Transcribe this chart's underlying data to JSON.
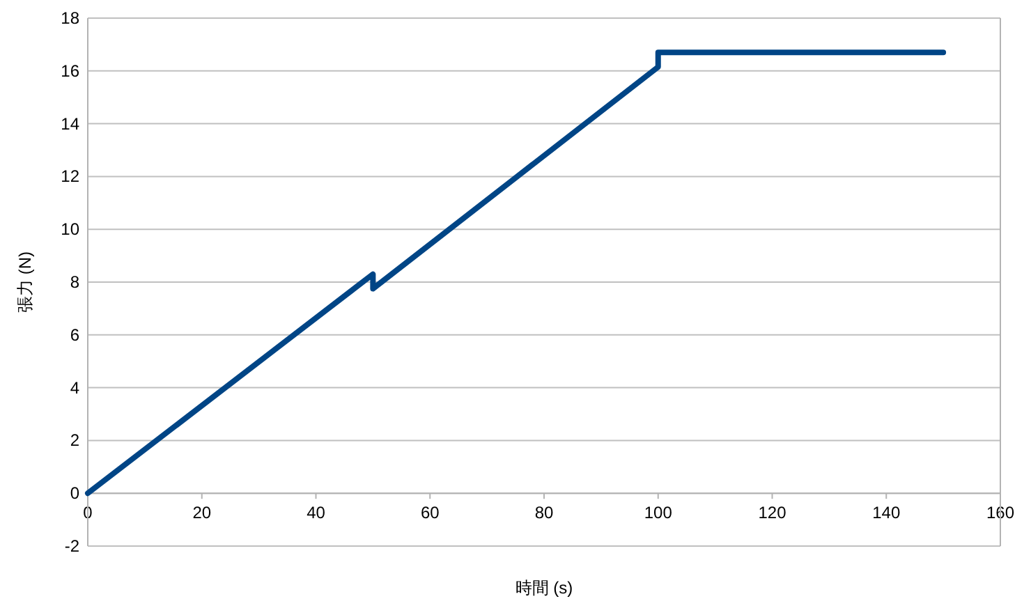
{
  "chart_data": {
    "type": "line",
    "xlabel": "時間 (s)",
    "ylabel": "張力 (N)",
    "series": [
      {
        "color": "#004586",
        "x": [
          0,
          50,
          50,
          100,
          100,
          150
        ],
        "values": [
          0,
          8.3,
          7.75,
          16.15,
          16.7,
          16.7
        ]
      }
    ],
    "xlim": [
      0,
      160
    ],
    "xticks": [
      0,
      20,
      40,
      60,
      80,
      100,
      120,
      140,
      160
    ],
    "ylim": [
      -2,
      18
    ],
    "yticks": [
      -2,
      0,
      2,
      4,
      6,
      8,
      10,
      12,
      14,
      16,
      18
    ],
    "grid": "y",
    "marker": "none",
    "line_style": "solid"
  }
}
